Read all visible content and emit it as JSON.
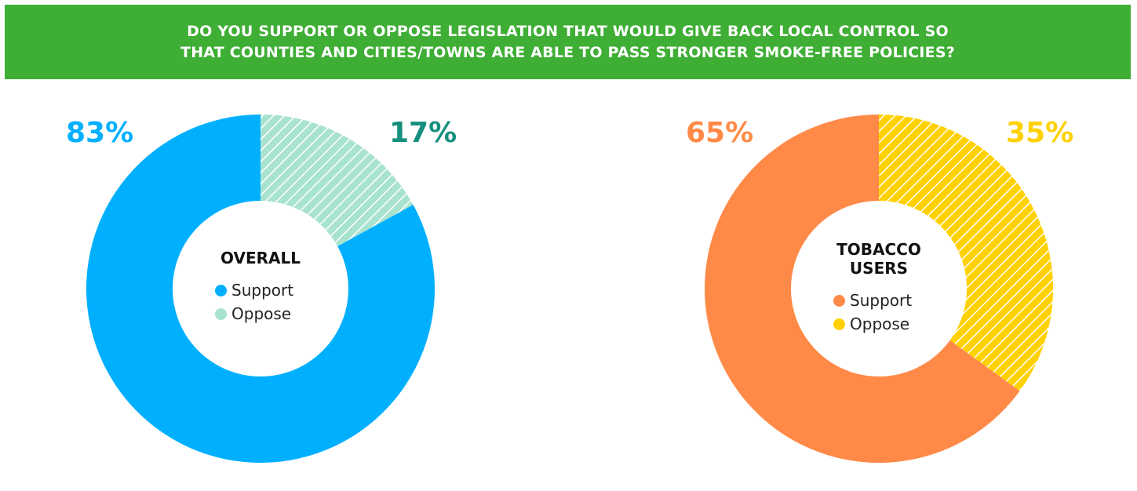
{
  "title_lines": [
    "DO YOU SUPPORT OR OPPOSE LEGISLATION THAT WOULD GIVE BACK LOCAL CONTROL SO",
    "THAT COUNTIES AND CITIES/TOWNS ARE ABLE TO PASS STRONGER SMOKE-FREE POLICIES?"
  ],
  "colors": {
    "banner": "#3fae35",
    "overall_support": "#00b0ff",
    "overall_oppose": "#a8e3cf",
    "overall_oppose_label": "#16907e",
    "tobacco_support": "#ff8a48",
    "tobacco_oppose": "#ffd100"
  },
  "chart_data": [
    {
      "type": "pie",
      "title": "OVERALL",
      "categories": [
        "Support",
        "Oppose"
      ],
      "values": [
        83,
        17
      ],
      "labels": [
        "83%",
        "17%"
      ],
      "legend": [
        "Support",
        "Oppose"
      ],
      "legend_placement": "center"
    },
    {
      "type": "pie",
      "title": "TOBACCO USERS",
      "title_lines": [
        "TOBACCO",
        "USERS"
      ],
      "categories": [
        "Support",
        "Oppose"
      ],
      "values": [
        65,
        35
      ],
      "labels": [
        "65%",
        "35%"
      ],
      "legend": [
        "Support",
        "Oppose"
      ],
      "legend_placement": "center"
    }
  ]
}
